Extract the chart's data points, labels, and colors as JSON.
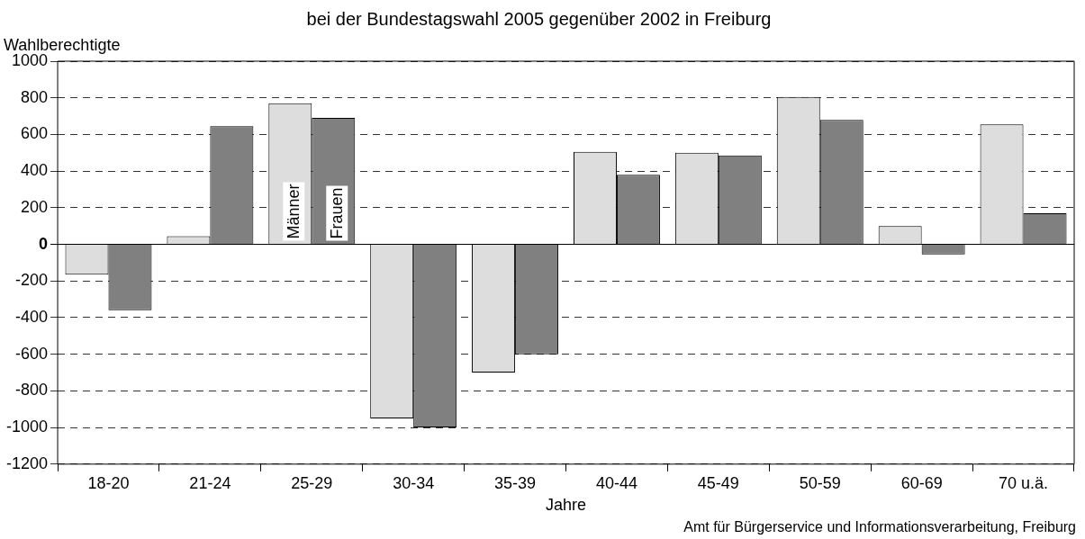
{
  "chart_data": {
    "type": "bar",
    "title": "bei der Bundestagswahl 2005 gegenüber 2002 in Freiburg",
    "ylabel": "Wahlberechtigte",
    "xlabel": "Jahre",
    "categories": [
      "18-20",
      "21-24",
      "25-29",
      "30-34",
      "35-39",
      "40-44",
      "45-49",
      "50-59",
      "60-69",
      "70 u.ä."
    ],
    "series": [
      {
        "name": "Männer",
        "color": "#dddddd",
        "values": [
          -165,
          45,
          770,
          -950,
          -700,
          505,
          500,
          805,
          100,
          655
        ]
      },
      {
        "name": "Frauen",
        "color": "#808080",
        "values": [
          -360,
          645,
          690,
          -1000,
          -600,
          380,
          485,
          680,
          -55,
          170
        ]
      }
    ],
    "ylim": [
      -1200,
      1000
    ],
    "yticks": [
      -1200,
      -1000,
      -800,
      -600,
      -400,
      -200,
      0,
      200,
      400,
      600,
      800,
      1000
    ],
    "grid": "y",
    "legend": false,
    "annotations": [
      "Amt für Bürgerservice und Informationsverarbeitung, Freiburg"
    ]
  }
}
